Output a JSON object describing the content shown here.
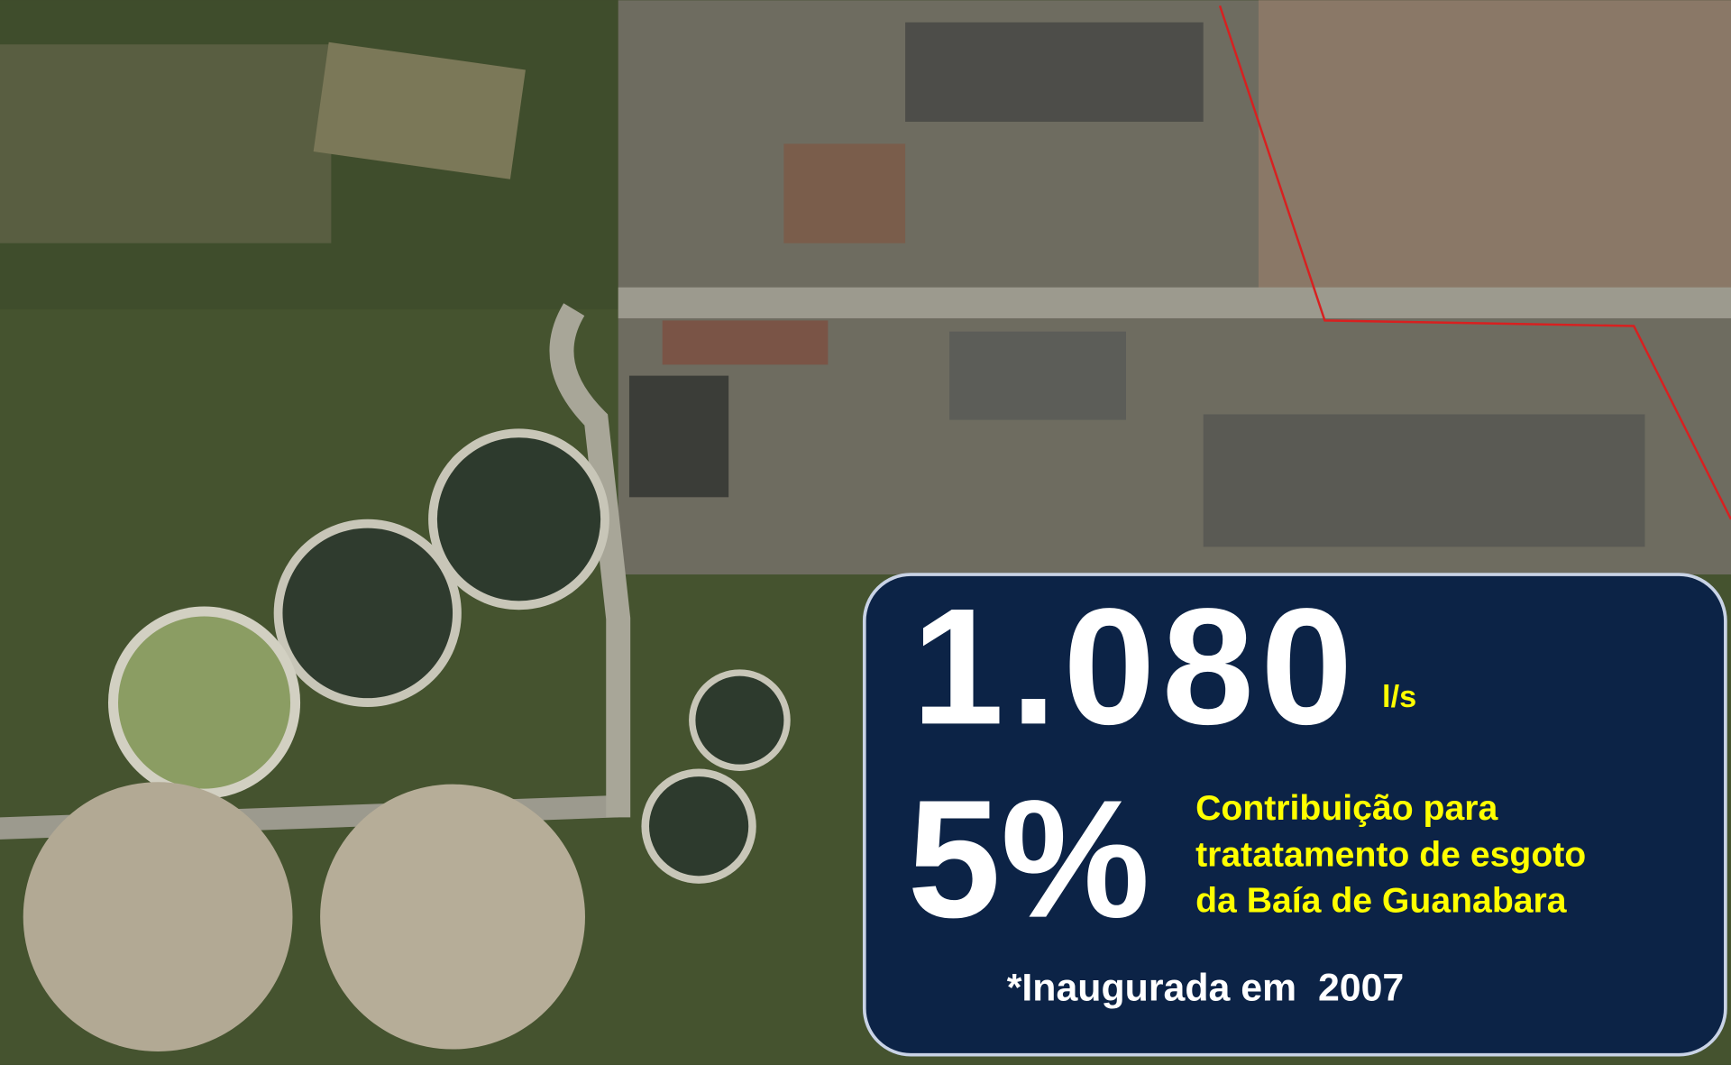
{
  "overlay": {
    "flow": {
      "value": "1.080",
      "unit": "l/s"
    },
    "share": {
      "value": "5%",
      "description": [
        "Contribuição para",
        "tratatamento de esgoto",
        "da Baía de Guanabara"
      ]
    },
    "note": "*Inaugurada em  2007"
  }
}
